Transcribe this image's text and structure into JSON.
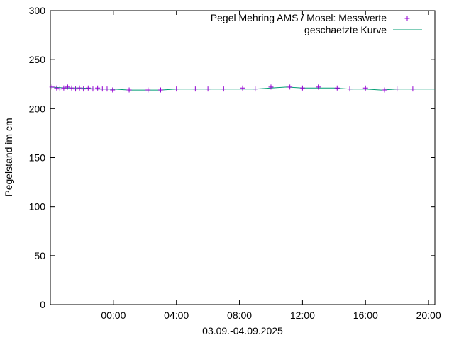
{
  "chart_data": {
    "type": "line",
    "xlabel": "03.09.-04.09.2025",
    "ylabel": "Pegelstand im cm",
    "xlim_hours": [
      -4.0,
      20.4
    ],
    "ylim": [
      0,
      300
    ],
    "x_ticks": [
      {
        "h": 0,
        "label": "00:00"
      },
      {
        "h": 4,
        "label": "04:00"
      },
      {
        "h": 8,
        "label": "08:00"
      },
      {
        "h": 12,
        "label": "12:00"
      },
      {
        "h": 16,
        "label": "16:00"
      },
      {
        "h": 20,
        "label": "20:00"
      }
    ],
    "y_ticks": [
      0,
      50,
      100,
      150,
      200,
      250,
      300
    ],
    "grid": false,
    "legend_position": "top-right",
    "colors": {
      "measurements": "#9400d3",
      "curve": "#009e73",
      "axis": "#000000"
    },
    "series": [
      {
        "name": "Pegel Mehring AMS / Mosel: Messwerte",
        "style": "points-plus",
        "x_hours": [
          -3.9,
          -3.6,
          -3.4,
          -3.15,
          -2.9,
          -2.65,
          -2.4,
          -2.15,
          -1.9,
          -1.6,
          -1.3,
          -1.0,
          -0.7,
          -0.4,
          -0.05,
          1.0,
          2.2,
          3.0,
          4.0,
          5.2,
          6.0,
          7.0,
          8.2,
          9.0,
          10.0,
          11.2,
          12.0,
          13.0,
          14.2,
          15.0,
          16.0,
          17.2,
          18.0,
          19.0
        ],
        "values": [
          222,
          221,
          220,
          221,
          222,
          221,
          220,
          221,
          220,
          221,
          220,
          221,
          220,
          220,
          219,
          219,
          219,
          219,
          220,
          220,
          220,
          220,
          221,
          220,
          222,
          222,
          221,
          222,
          221,
          220,
          221,
          219,
          220,
          220
        ]
      },
      {
        "name": "geschaetzte Kurve",
        "style": "line",
        "x_hours": [
          -4.0,
          -3.0,
          -2.0,
          -1.0,
          0.0,
          1.0,
          2.0,
          3.0,
          4.0,
          5.0,
          6.0,
          7.0,
          8.0,
          9.0,
          10.0,
          11.0,
          12.0,
          13.0,
          14.0,
          15.0,
          16.0,
          17.0,
          18.0,
          19.0,
          20.0,
          20.4
        ],
        "values": [
          222,
          221,
          221,
          220,
          220,
          219,
          219,
          219,
          220,
          220,
          220,
          220,
          220,
          220,
          221,
          222,
          221,
          221,
          221,
          220,
          220,
          219,
          220,
          220,
          220,
          220
        ]
      }
    ]
  }
}
